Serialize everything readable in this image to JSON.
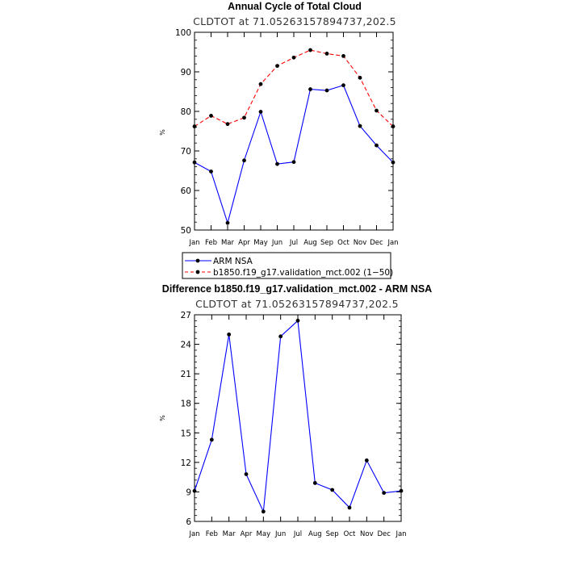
{
  "chart_data": [
    {
      "type": "line",
      "title": "Annual Cycle of Total Cloud",
      "subtitle": "CLDTOT at 71.05263157894737,202.5",
      "xlabel": "",
      "ylabel": "%",
      "categories": [
        "Jan",
        "Feb",
        "Mar",
        "Apr",
        "May",
        "Jun",
        "Jul",
        "Aug",
        "Sep",
        "Oct",
        "Nov",
        "Dec",
        "Jan"
      ],
      "ylim": [
        50,
        100
      ],
      "yticks": [
        50,
        60,
        70,
        80,
        90,
        100
      ],
      "grid": false,
      "legend_position": "bottom",
      "series": [
        {
          "name": "ARM NSA",
          "color": "#0000ff",
          "dash": "solid",
          "values": [
            67.1,
            64.8,
            51.8,
            67.6,
            79.9,
            66.7,
            67.2,
            85.6,
            85.3,
            86.6,
            76.3,
            71.4,
            67.1
          ]
        },
        {
          "name": "b1850.f19_g17.validation_mct.002 (1−50)",
          "color": "#ff0000",
          "dash": "dashed",
          "values": [
            76.2,
            78.9,
            76.8,
            78.4,
            86.9,
            91.5,
            93.6,
            95.5,
            94.6,
            94.0,
            88.5,
            80.2,
            76.2
          ]
        }
      ]
    },
    {
      "type": "line",
      "title": "Difference b1850.f19_g17.validation_mct.002 - ARM NSA",
      "subtitle": "CLDTOT at 71.05263157894737,202.5",
      "xlabel": "",
      "ylabel": "%",
      "categories": [
        "Jan",
        "Feb",
        "Mar",
        "Apr",
        "May",
        "Jun",
        "Jul",
        "Aug",
        "Sep",
        "Oct",
        "Nov",
        "Dec",
        "Jan"
      ],
      "ylim": [
        6,
        27
      ],
      "yticks": [
        6,
        9,
        12,
        15,
        18,
        21,
        24,
        27
      ],
      "grid": false,
      "series": [
        {
          "color": "#0000ff",
          "dash": "solid",
          "values": [
            9.1,
            14.3,
            25.0,
            10.8,
            7.0,
            24.8,
            26.4,
            9.9,
            9.2,
            7.4,
            12.2,
            8.9,
            9.1
          ]
        }
      ]
    }
  ]
}
